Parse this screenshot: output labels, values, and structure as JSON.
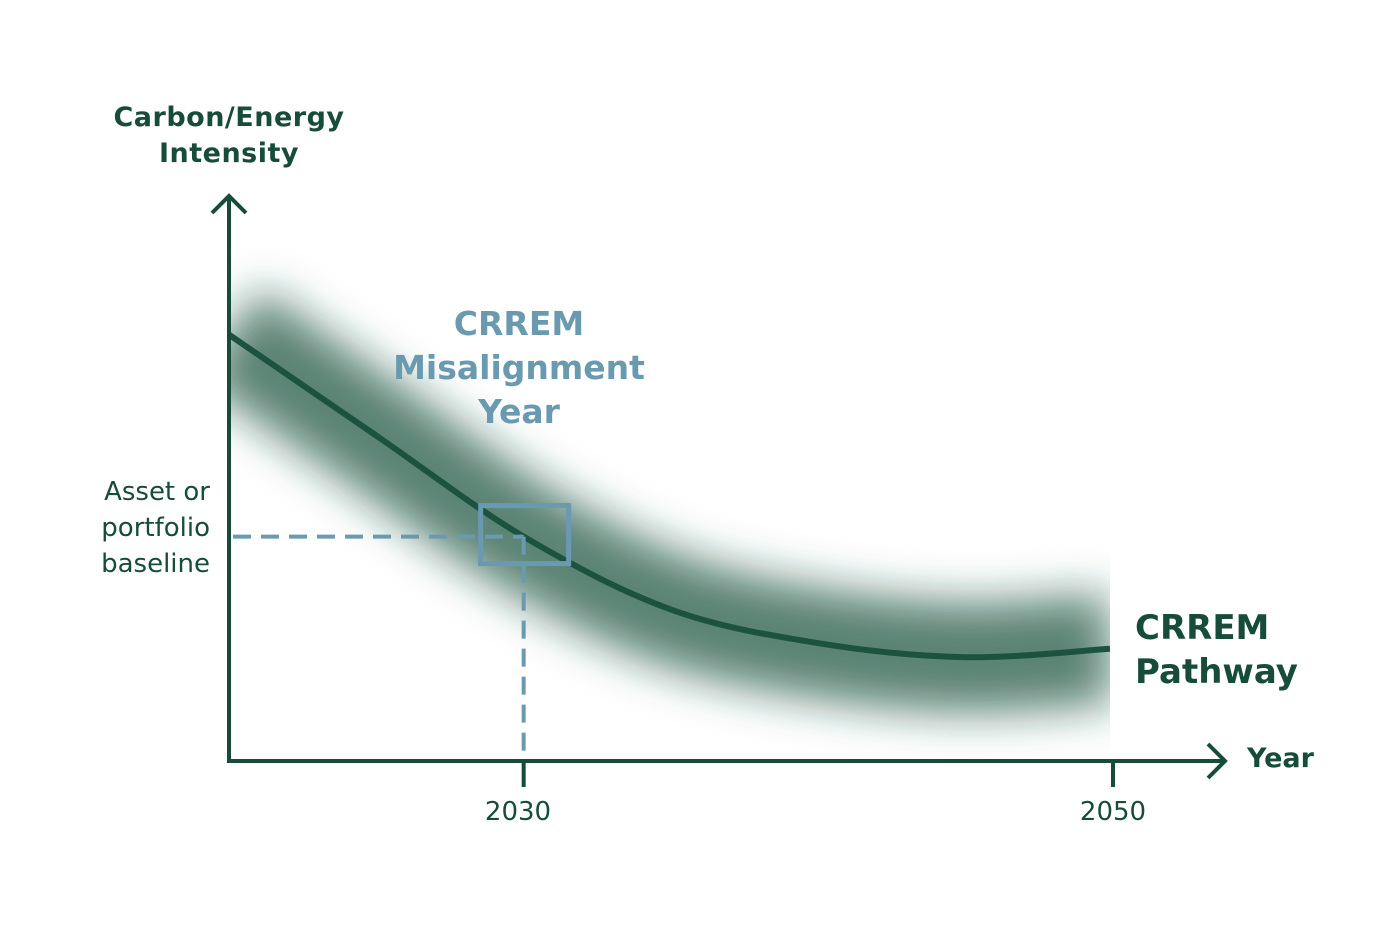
{
  "colors": {
    "primary": "#174c3a",
    "curve": "#1b5340",
    "highlight": "#6a9ab0",
    "background": "#ffffff"
  },
  "labels": {
    "y_axis": "Carbon/Energy Intensity",
    "y_axis_line1": "Carbon/Energy",
    "y_axis_line2": "Intensity",
    "x_axis": "Year",
    "baseline_line1": "Asset or",
    "baseline_line2": "portfolio",
    "baseline_line3": "baseline",
    "misalignment_line1": "CRREM",
    "misalignment_line2": "Misalignment",
    "misalignment_line3": "Year",
    "pathway_line1": "CRREM",
    "pathway_line2": "Pathway"
  },
  "chart_data": {
    "type": "line",
    "title": "",
    "xlabel": "Year",
    "ylabel": "Carbon/Energy Intensity",
    "x_ticks": [
      "2030",
      "2050"
    ],
    "x_tick_values": [
      2030,
      2050
    ],
    "xlim": [
      2020,
      2055
    ],
    "ylim": [
      0,
      100
    ],
    "grid": false,
    "series": [
      {
        "name": "CRREM Pathway",
        "x": [
          2020,
          2025,
          2030,
          2035,
          2040,
          2045,
          2050
        ],
        "y": [
          76,
          58,
          40,
          27,
          21,
          18.5,
          20
        ],
        "uncertainty_band": true
      }
    ],
    "annotations": [
      {
        "text": "CRREM Misalignment Year",
        "x": 2030,
        "y": 40,
        "marker": "square"
      },
      {
        "text": "Asset or portfolio baseline",
        "y": 40,
        "guide": "dashed-horizontal"
      },
      {
        "text": "2030",
        "x": 2030,
        "guide": "dashed-vertical"
      }
    ]
  }
}
